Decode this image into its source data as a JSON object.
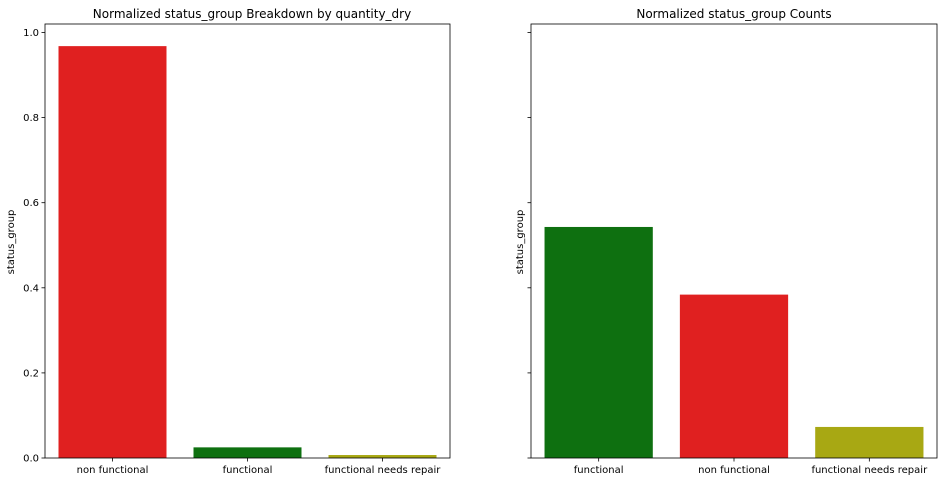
{
  "chart_data": [
    {
      "type": "bar",
      "title": "Normalized status_group Breakdown by quantity_dry",
      "xlabel": "",
      "ylabel": "status_group",
      "ylim": [
        0,
        1.02
      ],
      "yticks": [
        "0.0",
        "0.2",
        "0.4",
        "0.6",
        "0.8",
        "1.0"
      ],
      "categories": [
        "non functional",
        "functional",
        "functional needs repair"
      ],
      "values": [
        0.968,
        0.025,
        0.007
      ],
      "colors": [
        "#e02020",
        "#0e7010",
        "#a8a813"
      ]
    },
    {
      "type": "bar",
      "title": "Normalized status_group Counts",
      "xlabel": "",
      "ylabel": "status_group",
      "ylim": [
        0,
        1.02
      ],
      "yticks": [
        "",
        "",
        "",
        "",
        "",
        ""
      ],
      "shared_y": true,
      "categories": [
        "functional",
        "non functional",
        "functional needs repair"
      ],
      "values": [
        0.543,
        0.384,
        0.073
      ],
      "colors": [
        "#0e7010",
        "#e02020",
        "#a8a813"
      ]
    }
  ]
}
